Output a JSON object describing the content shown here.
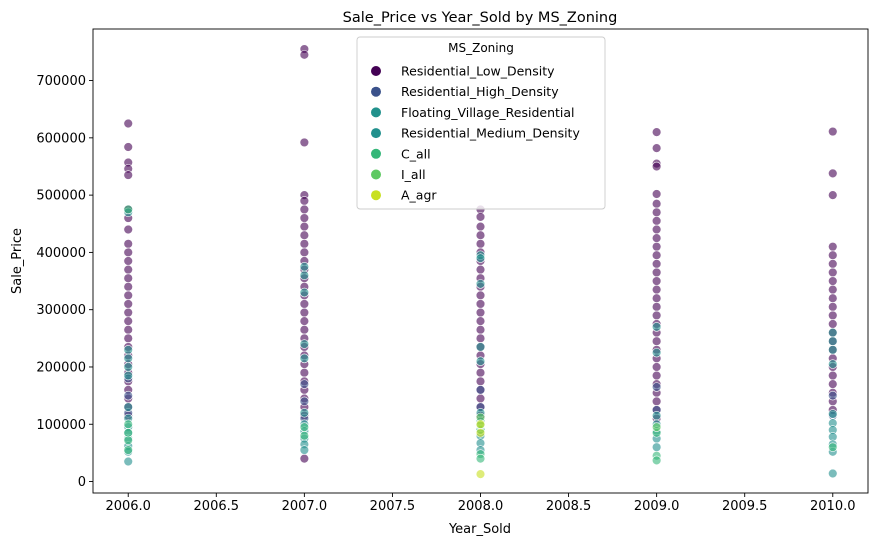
{
  "chart_data": {
    "type": "scatter",
    "title": "Sale_Price vs Year_Sold by MS_Zoning",
    "xlabel": "Year_Sold",
    "ylabel": "Sale_Price",
    "xlim": [
      1957.9,
      2010.2
    ],
    "ylim": [
      -20000,
      790000
    ],
    "xticks": [
      2006.0,
      2006.5,
      2007.0,
      2007.5,
      2008.0,
      2008.5,
      2009.0,
      2009.5,
      2010.0
    ],
    "xtick_labels": [
      "2006.0",
      "2006.5",
      "2007.0",
      "2007.5",
      "2008.0",
      "2008.5",
      "2009.0",
      "2009.5",
      "2010.0"
    ],
    "yticks": [
      0,
      100000,
      200000,
      300000,
      400000,
      500000,
      600000,
      700000
    ],
    "ytick_labels": [
      "0",
      "100000",
      "200000",
      "300000",
      "400000",
      "500000",
      "600000",
      "700000"
    ],
    "grid": false,
    "legend": {
      "title": "MS_Zoning",
      "placement": "upper-center"
    },
    "marker_opacity": 0.6,
    "series": [
      {
        "name": "Residential_Low_Density",
        "color": "#440154",
        "points": [
          [
            2006,
            625000
          ],
          [
            2006,
            584000
          ],
          [
            2006,
            557000
          ],
          [
            2006,
            546000
          ],
          [
            2006,
            535000
          ],
          [
            2006,
            475000
          ],
          [
            2006,
            460000
          ],
          [
            2006,
            440000
          ],
          [
            2006,
            415000
          ],
          [
            2006,
            400000
          ],
          [
            2006,
            385000
          ],
          [
            2006,
            370000
          ],
          [
            2006,
            355000
          ],
          [
            2006,
            340000
          ],
          [
            2006,
            325000
          ],
          [
            2006,
            310000
          ],
          [
            2006,
            295000
          ],
          [
            2006,
            280000
          ],
          [
            2006,
            265000
          ],
          [
            2006,
            250000
          ],
          [
            2006,
            235000
          ],
          [
            2006,
            220000
          ],
          [
            2006,
            205000
          ],
          [
            2006,
            190000
          ],
          [
            2006,
            175000
          ],
          [
            2006,
            160000
          ],
          [
            2006,
            145000
          ],
          [
            2006,
            130000
          ],
          [
            2006,
            115000
          ],
          [
            2007,
            755000
          ],
          [
            2007,
            745000
          ],
          [
            2007,
            592000
          ],
          [
            2007,
            500000
          ],
          [
            2007,
            490000
          ],
          [
            2007,
            475000
          ],
          [
            2007,
            460000
          ],
          [
            2007,
            445000
          ],
          [
            2007,
            430000
          ],
          [
            2007,
            415000
          ],
          [
            2007,
            400000
          ],
          [
            2007,
            385000
          ],
          [
            2007,
            370000
          ],
          [
            2007,
            355000
          ],
          [
            2007,
            340000
          ],
          [
            2007,
            325000
          ],
          [
            2007,
            310000
          ],
          [
            2007,
            295000
          ],
          [
            2007,
            280000
          ],
          [
            2007,
            265000
          ],
          [
            2007,
            250000
          ],
          [
            2007,
            235000
          ],
          [
            2007,
            220000
          ],
          [
            2007,
            205000
          ],
          [
            2007,
            190000
          ],
          [
            2007,
            175000
          ],
          [
            2007,
            160000
          ],
          [
            2007,
            145000
          ],
          [
            2007,
            130000
          ],
          [
            2007,
            115000
          ],
          [
            2007,
            40000
          ],
          [
            2008,
            475000
          ],
          [
            2008,
            462000
          ],
          [
            2008,
            445000
          ],
          [
            2008,
            430000
          ],
          [
            2008,
            415000
          ],
          [
            2008,
            400000
          ],
          [
            2008,
            385000
          ],
          [
            2008,
            370000
          ],
          [
            2008,
            355000
          ],
          [
            2008,
            340000
          ],
          [
            2008,
            325000
          ],
          [
            2008,
            310000
          ],
          [
            2008,
            295000
          ],
          [
            2008,
            280000
          ],
          [
            2008,
            265000
          ],
          [
            2008,
            250000
          ],
          [
            2008,
            235000
          ],
          [
            2008,
            220000
          ],
          [
            2008,
            205000
          ],
          [
            2008,
            190000
          ],
          [
            2008,
            175000
          ],
          [
            2008,
            160000
          ],
          [
            2008,
            145000
          ],
          [
            2008,
            130000
          ],
          [
            2008,
            115000
          ],
          [
            2009,
            610000
          ],
          [
            2009,
            582000
          ],
          [
            2009,
            555000
          ],
          [
            2009,
            550000
          ],
          [
            2009,
            502000
          ],
          [
            2009,
            485000
          ],
          [
            2009,
            470000
          ],
          [
            2009,
            455000
          ],
          [
            2009,
            440000
          ],
          [
            2009,
            425000
          ],
          [
            2009,
            410000
          ],
          [
            2009,
            395000
          ],
          [
            2009,
            380000
          ],
          [
            2009,
            365000
          ],
          [
            2009,
            350000
          ],
          [
            2009,
            335000
          ],
          [
            2009,
            320000
          ],
          [
            2009,
            305000
          ],
          [
            2009,
            290000
          ],
          [
            2009,
            275000
          ],
          [
            2009,
            260000
          ],
          [
            2009,
            245000
          ],
          [
            2009,
            230000
          ],
          [
            2009,
            215000
          ],
          [
            2009,
            200000
          ],
          [
            2009,
            185000
          ],
          [
            2009,
            170000
          ],
          [
            2009,
            155000
          ],
          [
            2009,
            140000
          ],
          [
            2009,
            125000
          ],
          [
            2009,
            110000
          ],
          [
            2010,
            611000
          ],
          [
            2010,
            538000
          ],
          [
            2010,
            500000
          ],
          [
            2010,
            410000
          ],
          [
            2010,
            395000
          ],
          [
            2010,
            380000
          ],
          [
            2010,
            365000
          ],
          [
            2010,
            350000
          ],
          [
            2010,
            335000
          ],
          [
            2010,
            320000
          ],
          [
            2010,
            305000
          ],
          [
            2010,
            290000
          ],
          [
            2010,
            275000
          ],
          [
            2010,
            260000
          ],
          [
            2010,
            245000
          ],
          [
            2010,
            230000
          ],
          [
            2010,
            215000
          ],
          [
            2010,
            200000
          ],
          [
            2010,
            185000
          ],
          [
            2010,
            170000
          ],
          [
            2010,
            155000
          ],
          [
            2010,
            140000
          ],
          [
            2010,
            125000
          ]
        ]
      },
      {
        "name": "Residential_High_Density",
        "color": "#3b528b",
        "points": [
          [
            2006,
            180000
          ],
          [
            2006,
            150000
          ],
          [
            2006,
            120000
          ],
          [
            2007,
            170000
          ],
          [
            2007,
            140000
          ],
          [
            2007,
            110000
          ],
          [
            2008,
            160000
          ],
          [
            2008,
            130000
          ],
          [
            2009,
            165000
          ],
          [
            2009,
            125000
          ],
          [
            2010,
            150000
          ],
          [
            2010,
            115000
          ]
        ]
      },
      {
        "name": "Floating_Village_Residential",
        "color": "#21918c",
        "points": [
          [
            2006,
            230000
          ],
          [
            2006,
            200000
          ],
          [
            2006,
            185000
          ],
          [
            2007,
            360000
          ],
          [
            2007,
            330000
          ],
          [
            2007,
            240000
          ],
          [
            2007,
            215000
          ],
          [
            2008,
            395000
          ],
          [
            2008,
            345000
          ],
          [
            2008,
            235000
          ],
          [
            2008,
            210000
          ],
          [
            2009,
            270000
          ],
          [
            2009,
            225000
          ],
          [
            2010,
            260000
          ],
          [
            2010,
            230000
          ],
          [
            2010,
            205000
          ]
        ]
      },
      {
        "name": "Residential_Medium_Density",
        "color": "#21908d",
        "points": [
          [
            2006,
            470000
          ],
          [
            2006,
            215000
          ],
          [
            2006,
            130000
          ],
          [
            2006,
            110000
          ],
          [
            2006,
            95000
          ],
          [
            2006,
            85000
          ],
          [
            2006,
            75000
          ],
          [
            2006,
            62000
          ],
          [
            2006,
            52000
          ],
          [
            2006,
            35000
          ],
          [
            2007,
            375000
          ],
          [
            2007,
            120000
          ],
          [
            2007,
            100000
          ],
          [
            2007,
            88000
          ],
          [
            2007,
            75000
          ],
          [
            2007,
            65000
          ],
          [
            2007,
            55000
          ],
          [
            2008,
            390000
          ],
          [
            2008,
            120000
          ],
          [
            2008,
            105000
          ],
          [
            2008,
            92000
          ],
          [
            2008,
            80000
          ],
          [
            2008,
            67000
          ],
          [
            2008,
            55000
          ],
          [
            2009,
            115000
          ],
          [
            2009,
            100000
          ],
          [
            2009,
            88000
          ],
          [
            2009,
            75000
          ],
          [
            2009,
            60000
          ],
          [
            2010,
            245000
          ],
          [
            2010,
            118000
          ],
          [
            2010,
            102000
          ],
          [
            2010,
            90000
          ],
          [
            2010,
            78000
          ],
          [
            2010,
            65000
          ],
          [
            2010,
            52000
          ],
          [
            2010,
            14000
          ]
        ]
      },
      {
        "name": "C_all",
        "color": "#35b779",
        "points": [
          [
            2006,
            475000
          ],
          [
            2006,
            100000
          ],
          [
            2006,
            85000
          ],
          [
            2006,
            72000
          ],
          [
            2006,
            55000
          ],
          [
            2007,
            95000
          ],
          [
            2007,
            80000
          ],
          [
            2008,
            90000
          ],
          [
            2008,
            48000
          ],
          [
            2008,
            40000
          ],
          [
            2009,
            85000
          ],
          [
            2009,
            45000
          ],
          [
            2009,
            37000
          ],
          [
            2010,
            60000
          ]
        ]
      },
      {
        "name": "I_all",
        "color": "#5ec962",
        "points": [
          [
            2008,
            112000
          ],
          [
            2008,
            98000
          ],
          [
            2009,
            95000
          ]
        ]
      },
      {
        "name": "A_agr",
        "color": "#c8e020",
        "points": [
          [
            2008,
            13000
          ],
          [
            2008,
            100000
          ],
          [
            2008,
            85000
          ]
        ]
      }
    ]
  }
}
